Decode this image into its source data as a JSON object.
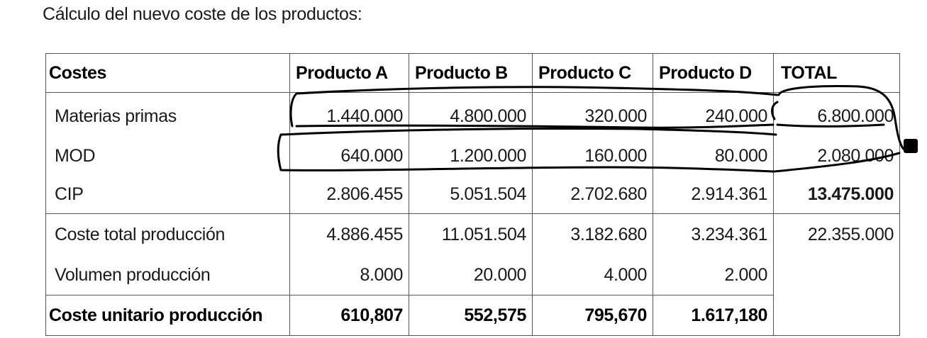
{
  "heading": "Cálculo del nuevo coste de los productos:",
  "table": {
    "headers": [
      "Costes",
      "Producto A",
      "Producto B",
      "Producto C",
      "Producto D",
      "TOTAL"
    ],
    "rows": [
      {
        "label": "Materias primas",
        "values": [
          "1.440.000",
          "4.800.000",
          "320.000",
          "240.000"
        ],
        "total": "6.800.000"
      },
      {
        "label": "MOD",
        "values": [
          "640.000",
          "1.200.000",
          "160.000",
          "80.000"
        ],
        "total": "2.080.000"
      },
      {
        "label": "CIP",
        "values": [
          "2.806.455",
          "5.051.504",
          "2.702.680",
          "2.914.361"
        ],
        "total": "13.475.000"
      },
      {
        "label": "Coste total producción",
        "values": [
          "4.886.455",
          "11.051.504",
          "3.182.680",
          "3.234.361"
        ],
        "total": "22.355.000"
      },
      {
        "label": "Volumen producción",
        "values": [
          "8.000",
          "20.000",
          "4.000",
          "2.000"
        ],
        "total": ""
      },
      {
        "label": "Coste unitario producción",
        "values": [
          "610,807",
          "552,575",
          "795,670",
          "1.617,180"
        ],
        "total": ""
      }
    ]
  }
}
